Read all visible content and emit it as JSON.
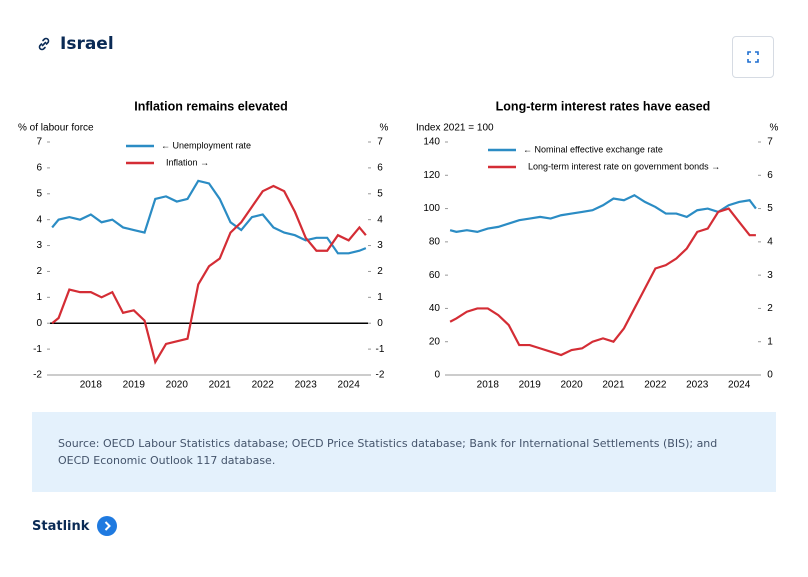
{
  "header": {
    "title": "Israel"
  },
  "chart_data": [
    {
      "type": "line",
      "title": "Inflation remains elevated",
      "ylabel": "% of labour force",
      "y2label": "%",
      "x": [
        2017.6,
        2017.75,
        2018.0,
        2018.25,
        2018.5,
        2018.75,
        2019.0,
        2019.25,
        2019.5,
        2019.75,
        2020.0,
        2020.25,
        2020.5,
        2020.75,
        2021.0,
        2021.25,
        2021.5,
        2021.75,
        2022.0,
        2022.25,
        2022.5,
        2022.75,
        2023.0,
        2023.25,
        2023.5,
        2023.75,
        2024.0,
        2024.25,
        2024.5,
        2024.75,
        2024.9
      ],
      "xlim": [
        2017.55,
        2024.95
      ],
      "xticks": [
        {
          "value": 2018.5,
          "label": "2018"
        },
        {
          "value": 2019.5,
          "label": "2019"
        },
        {
          "value": 2020.5,
          "label": "2020"
        },
        {
          "value": 2021.5,
          "label": "2021"
        },
        {
          "value": 2022.5,
          "label": "2022"
        },
        {
          "value": 2023.5,
          "label": "2023"
        },
        {
          "value": 2024.5,
          "label": "2024"
        }
      ],
      "ylim": [
        -2,
        7
      ],
      "yticks": [
        -2,
        -1,
        0,
        1,
        2,
        3,
        4,
        5,
        6,
        7
      ],
      "y2lim": [
        -2,
        7
      ],
      "y2ticks": [
        -2,
        -1,
        0,
        1,
        2,
        3,
        4,
        5,
        6,
        7
      ],
      "series": [
        {
          "name": "← Unemployment rate",
          "color": "#2b8cc4",
          "values": [
            3.7,
            4.0,
            4.1,
            4.0,
            4.2,
            3.9,
            4.0,
            3.7,
            3.6,
            3.5,
            4.8,
            4.9,
            4.7,
            4.8,
            5.5,
            5.4,
            4.8,
            3.9,
            3.6,
            4.1,
            4.2,
            3.7,
            3.5,
            3.4,
            3.2,
            3.3,
            3.3,
            2.7,
            2.7,
            2.8,
            2.9
          ]
        },
        {
          "name": "Inflation →",
          "color": "#d42d35",
          "axis": "y2",
          "values": [
            0.0,
            0.2,
            1.3,
            1.2,
            1.2,
            1.0,
            1.2,
            0.4,
            0.5,
            0.1,
            -1.5,
            -0.8,
            -0.7,
            -0.6,
            1.5,
            2.2,
            2.5,
            3.5,
            3.9,
            4.5,
            5.1,
            5.3,
            5.1,
            4.3,
            3.3,
            2.8,
            2.8,
            3.4,
            3.2,
            3.7,
            3.4
          ]
        }
      ]
    },
    {
      "type": "line",
      "title": "Long-term interest rates have eased",
      "ylabel": "Index 2021 = 100",
      "y2label": "%",
      "x": [
        2017.6,
        2017.75,
        2018.0,
        2018.25,
        2018.5,
        2018.75,
        2019.0,
        2019.25,
        2019.5,
        2019.75,
        2020.0,
        2020.25,
        2020.5,
        2020.75,
        2021.0,
        2021.25,
        2021.5,
        2021.75,
        2022.0,
        2022.25,
        2022.5,
        2022.75,
        2023.0,
        2023.25,
        2023.5,
        2023.75,
        2024.0,
        2024.25,
        2024.5,
        2024.75,
        2024.9
      ],
      "xlim": [
        2017.55,
        2024.95
      ],
      "xticks": [
        {
          "value": 2018.5,
          "label": "2018"
        },
        {
          "value": 2019.5,
          "label": "2019"
        },
        {
          "value": 2020.5,
          "label": "2020"
        },
        {
          "value": 2021.5,
          "label": "2021"
        },
        {
          "value": 2022.5,
          "label": "2022"
        },
        {
          "value": 2023.5,
          "label": "2023"
        },
        {
          "value": 2024.5,
          "label": "2024"
        }
      ],
      "ylim": [
        0,
        140
      ],
      "yticks": [
        0,
        20,
        40,
        60,
        80,
        100,
        120,
        140
      ],
      "y2lim": [
        0,
        7
      ],
      "y2ticks": [
        0,
        1,
        2,
        3,
        4,
        5,
        6,
        7
      ],
      "series": [
        {
          "name": "← Nominal effective exchange rate",
          "color": "#2b8cc4",
          "values": [
            87,
            86,
            87,
            86,
            88,
            89,
            91,
            93,
            94,
            95,
            94,
            96,
            97,
            98,
            99,
            102,
            106,
            105,
            108,
            104,
            101,
            97,
            97,
            95,
            99,
            100,
            98,
            102,
            104,
            105,
            100
          ]
        },
        {
          "name": "Long-term interest rate on government bonds →",
          "color": "#d42d35",
          "axis": "y2",
          "values": [
            1.6,
            1.7,
            1.9,
            2.0,
            2.0,
            1.8,
            1.5,
            0.9,
            0.9,
            0.8,
            0.7,
            0.6,
            0.75,
            0.8,
            1.0,
            1.1,
            1.0,
            1.4,
            2.0,
            2.6,
            3.2,
            3.3,
            3.5,
            3.8,
            4.3,
            4.4,
            4.9,
            5.0,
            4.6,
            4.2,
            4.2
          ]
        }
      ]
    }
  ],
  "source": "Source: OECD Labour Statistics database; OECD Price Statistics database; Bank for International Settlements (BIS); and OECD Economic Outlook 117 database.",
  "statlink": "Statlink"
}
